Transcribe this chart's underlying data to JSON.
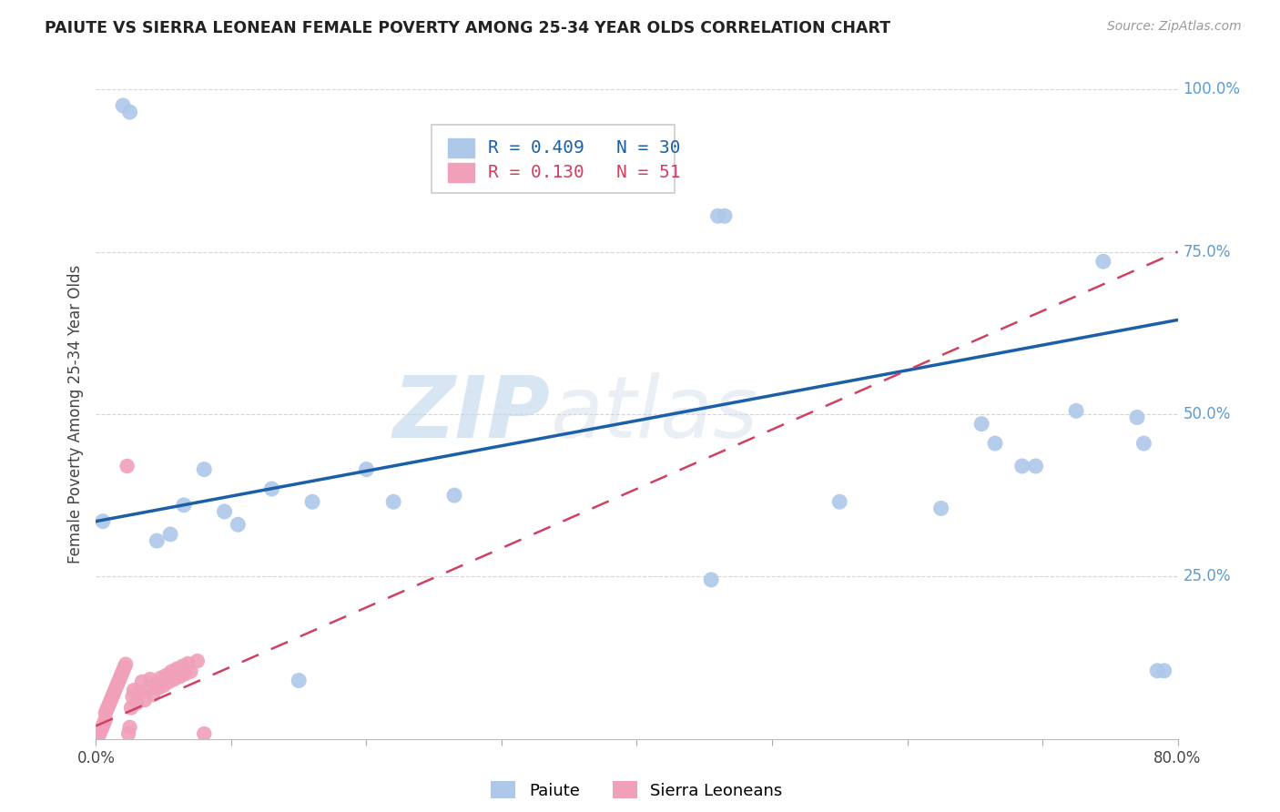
{
  "title": "PAIUTE VS SIERRA LEONEAN FEMALE POVERTY AMONG 25-34 YEAR OLDS CORRELATION CHART",
  "source": "Source: ZipAtlas.com",
  "ylabel": "Female Poverty Among 25-34 Year Olds",
  "xlim": [
    0.0,
    0.8
  ],
  "ylim": [
    0.0,
    1.0
  ],
  "xticks": [
    0.0,
    0.1,
    0.2,
    0.3,
    0.4,
    0.5,
    0.6,
    0.7,
    0.8
  ],
  "xticklabels": [
    "0.0%",
    "",
    "",
    "",
    "",
    "",
    "",
    "",
    "80.0%"
  ],
  "ytick_right_labels": [
    "100.0%",
    "75.0%",
    "50.0%",
    "25.0%"
  ],
  "ytick_right_vals": [
    1.0,
    0.75,
    0.5,
    0.25
  ],
  "paiute_color": "#adc8e8",
  "sierra_color": "#f0a0b8",
  "paiute_line_color": "#1a5fa8",
  "sierra_line_color": "#d04060",
  "legend_R_paiute": "R = 0.409",
  "legend_N_paiute": "N = 30",
  "legend_R_sierra": "R = 0.130",
  "legend_N_sierra": "N = 51",
  "paiute_line_x0": 0.0,
  "paiute_line_y0": 0.335,
  "paiute_line_x1": 0.8,
  "paiute_line_y1": 0.645,
  "sierra_line_x0": 0.0,
  "sierra_line_y0": 0.02,
  "sierra_line_x1": 0.8,
  "sierra_line_y1": 0.75,
  "paiute_x": [
    0.005,
    0.02,
    0.025,
    0.045,
    0.055,
    0.065,
    0.08,
    0.095,
    0.105,
    0.13,
    0.16,
    0.2,
    0.22,
    0.265,
    0.15,
    0.455,
    0.46,
    0.465,
    0.55,
    0.625,
    0.655,
    0.665,
    0.685,
    0.695,
    0.725,
    0.745,
    0.77,
    0.775,
    0.785,
    0.79
  ],
  "paiute_y": [
    0.335,
    0.975,
    0.965,
    0.305,
    0.315,
    0.36,
    0.415,
    0.35,
    0.33,
    0.385,
    0.365,
    0.415,
    0.365,
    0.375,
    0.09,
    0.245,
    0.805,
    0.805,
    0.365,
    0.355,
    0.485,
    0.455,
    0.42,
    0.42,
    0.505,
    0.735,
    0.495,
    0.455,
    0.105,
    0.105
  ],
  "sierra_x": [
    0.002,
    0.003,
    0.004,
    0.005,
    0.006,
    0.007,
    0.007,
    0.008,
    0.009,
    0.01,
    0.011,
    0.012,
    0.013,
    0.014,
    0.015,
    0.016,
    0.017,
    0.018,
    0.019,
    0.02,
    0.021,
    0.022,
    0.023,
    0.024,
    0.025,
    0.026,
    0.027,
    0.028,
    0.03,
    0.032,
    0.034,
    0.036,
    0.038,
    0.04,
    0.042,
    0.044,
    0.046,
    0.048,
    0.05,
    0.052,
    0.054,
    0.056,
    0.058,
    0.06,
    0.062,
    0.064,
    0.066,
    0.068,
    0.07,
    0.075,
    0.08
  ],
  "sierra_y": [
    0.005,
    0.01,
    0.015,
    0.02,
    0.025,
    0.03,
    0.04,
    0.045,
    0.05,
    0.055,
    0.06,
    0.065,
    0.07,
    0.075,
    0.08,
    0.085,
    0.09,
    0.095,
    0.1,
    0.105,
    0.11,
    0.115,
    0.42,
    0.008,
    0.018,
    0.048,
    0.065,
    0.075,
    0.055,
    0.072,
    0.088,
    0.06,
    0.076,
    0.092,
    0.068,
    0.084,
    0.078,
    0.094,
    0.082,
    0.098,
    0.088,
    0.104,
    0.092,
    0.108,
    0.096,
    0.112,
    0.1,
    0.116,
    0.104,
    0.12,
    0.008
  ],
  "watermark_line1": "ZIP",
  "watermark_line2": "atlas",
  "background_color": "#ffffff",
  "grid_color": "#d5d5d5"
}
